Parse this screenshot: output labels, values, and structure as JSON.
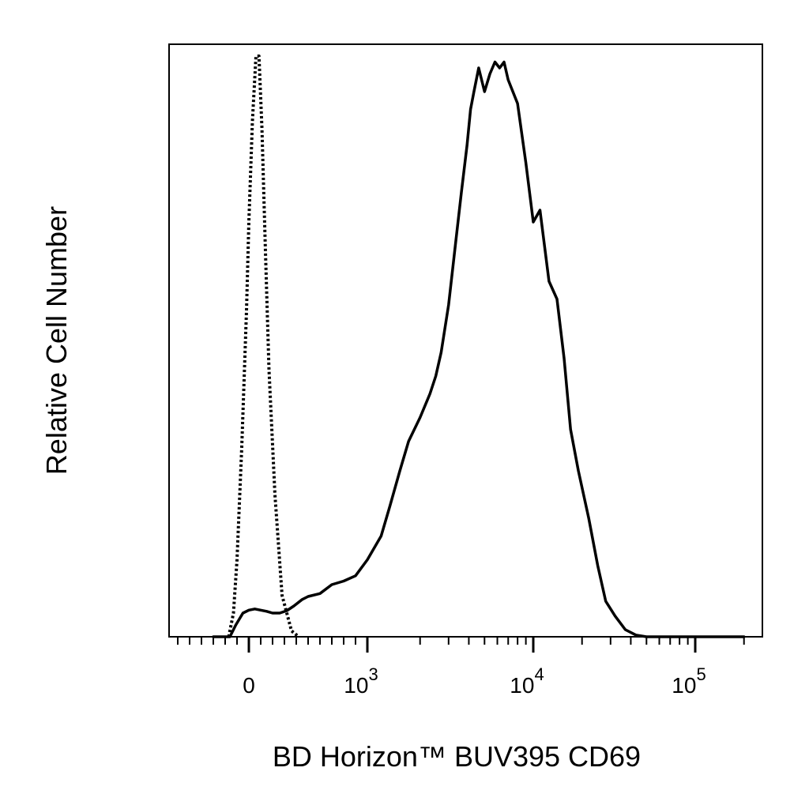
{
  "chart_data": {
    "type": "line",
    "title": "",
    "xlabel": "BD Horizon™ BUV395 CD69",
    "ylabel": "Relative Cell Number",
    "x_scale": "biexponential",
    "xlim": [
      -300,
      200000
    ],
    "ylim": [
      0,
      1.0
    ],
    "grid": false,
    "legend": "none",
    "tick_labels": [
      {
        "value": 0,
        "base": "0",
        "exp": ""
      },
      {
        "value": 1000,
        "base": "10",
        "exp": "3"
      },
      {
        "value": 10000,
        "base": "10",
        "exp": "4"
      },
      {
        "value": 100000,
        "base": "10",
        "exp": "5"
      }
    ],
    "series": [
      {
        "style": "dotted",
        "color": "#000000",
        "x": [
          -170,
          -130,
          -100,
          -60,
          -20,
          0,
          30,
          60,
          85,
          110,
          140,
          170,
          220,
          280,
          360,
          420
        ],
        "y": [
          0.0,
          0.04,
          0.13,
          0.32,
          0.55,
          0.7,
          0.87,
          0.98,
          0.98,
          0.86,
          0.65,
          0.45,
          0.24,
          0.07,
          0.01,
          0.0
        ]
      },
      {
        "style": "solid",
        "color": "#000000",
        "x": [
          -300,
          -160,
          -110,
          -50,
          0,
          50,
          100,
          150,
          200,
          260,
          320,
          380,
          450,
          500,
          600,
          700,
          800,
          900,
          1000,
          1150,
          1300,
          1500,
          1700,
          2000,
          2300,
          2500,
          2700,
          3000,
          3300,
          3600,
          3900,
          4100,
          4300,
          4600,
          5000,
          5400,
          5800,
          6200,
          6600,
          7000,
          8000,
          9000,
          10000,
          11000,
          12500,
          14000,
          15500,
          17000,
          19000,
          22000,
          25000,
          28000,
          32000,
          37000,
          43000,
          50000,
          60000,
          70000,
          80000,
          100000,
          150000,
          200000
        ],
        "y": [
          0.0,
          0.0,
          0.02,
          0.04,
          0.045,
          0.047,
          0.045,
          0.043,
          0.04,
          0.04,
          0.044,
          0.052,
          0.063,
          0.068,
          0.073,
          0.088,
          0.094,
          0.103,
          0.13,
          0.17,
          0.22,
          0.28,
          0.33,
          0.37,
          0.41,
          0.44,
          0.48,
          0.56,
          0.66,
          0.75,
          0.83,
          0.89,
          0.92,
          0.96,
          0.92,
          0.95,
          0.97,
          0.96,
          0.97,
          0.94,
          0.9,
          0.8,
          0.7,
          0.72,
          0.6,
          0.57,
          0.47,
          0.35,
          0.28,
          0.2,
          0.12,
          0.06,
          0.035,
          0.012,
          0.003,
          0.0,
          0.0,
          0.0,
          0.0,
          0.0,
          0.0,
          0.0
        ]
      }
    ]
  }
}
